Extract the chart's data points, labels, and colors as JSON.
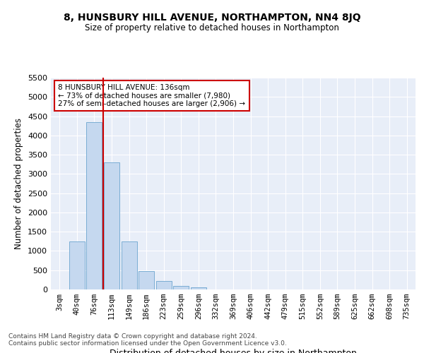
{
  "title": "8, HUNSBURY HILL AVENUE, NORTHAMPTON, NN4 8JQ",
  "subtitle": "Size of property relative to detached houses in Northampton",
  "xlabel": "Distribution of detached houses by size in Northampton",
  "ylabel": "Number of detached properties",
  "bar_labels": [
    "3sqm",
    "40sqm",
    "76sqm",
    "113sqm",
    "149sqm",
    "186sqm",
    "223sqm",
    "259sqm",
    "296sqm",
    "332sqm",
    "369sqm",
    "406sqm",
    "442sqm",
    "479sqm",
    "515sqm",
    "552sqm",
    "589sqm",
    "625sqm",
    "662sqm",
    "698sqm",
    "735sqm"
  ],
  "bar_values": [
    0,
    1250,
    4350,
    3300,
    1250,
    480,
    220,
    90,
    60,
    0,
    0,
    0,
    0,
    0,
    0,
    0,
    0,
    0,
    0,
    0,
    0
  ],
  "bar_color": "#c5d8ef",
  "bar_edgecolor": "#7aadd4",
  "vline_x_index": 2.5,
  "vline_color": "#cc0000",
  "annotation_text": "8 HUNSBURY HILL AVENUE: 136sqm\n← 73% of detached houses are smaller (7,980)\n27% of semi-detached houses are larger (2,906) →",
  "annotation_box_color": "white",
  "annotation_box_edgecolor": "#cc0000",
  "ylim": [
    0,
    5500
  ],
  "yticks": [
    0,
    500,
    1000,
    1500,
    2000,
    2500,
    3000,
    3500,
    4000,
    4500,
    5000,
    5500
  ],
  "background_color": "#e8eef8",
  "grid_color": "white",
  "footer1": "Contains HM Land Registry data © Crown copyright and database right 2024.",
  "footer2": "Contains public sector information licensed under the Open Government Licence v3.0."
}
